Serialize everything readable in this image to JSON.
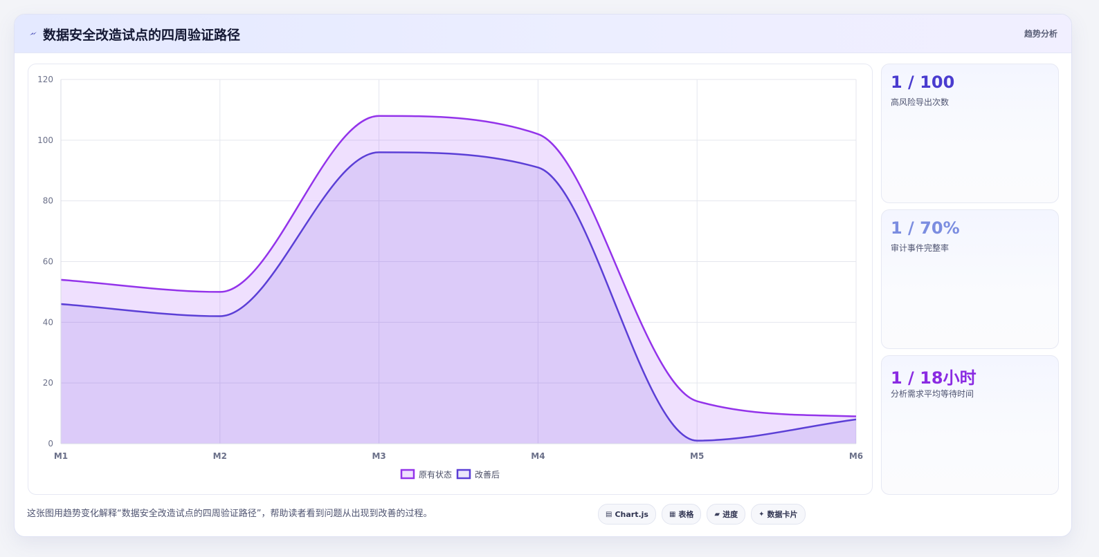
{
  "header": {
    "icon": "lightning-icon",
    "title": "数据安全改造试点的四周验证路径",
    "tag": "趋势分析"
  },
  "chart_data": {
    "type": "area",
    "categories": [
      "M1",
      "M2",
      "M3",
      "M4",
      "M5",
      "M6"
    ],
    "series": [
      {
        "name": "原有状态",
        "values": [
          54,
          50,
          108,
          102,
          14,
          9
        ],
        "color": "#9333ea"
      },
      {
        "name": "改善后",
        "values": [
          46,
          42,
          96,
          91,
          1,
          8
        ],
        "color": "#5b3fd6"
      }
    ],
    "ylim": [
      0,
      120
    ],
    "yticks": [
      0,
      20,
      40,
      60,
      80,
      100,
      120
    ],
    "grid": true,
    "legend_position": "bottom",
    "title": "",
    "xlabel": "",
    "ylabel": ""
  },
  "stats": [
    {
      "value": "1 / 100",
      "label": "高风险导出次数",
      "color": "#4a3ccf"
    },
    {
      "value": "1 / 70%",
      "label": "审计事件完整率",
      "color": "#7b8de0"
    },
    {
      "value": "1 / 18小时",
      "label": "分析需求平均等待时间",
      "color": "#8a2be2"
    }
  ],
  "footer": {
    "text": "这张图用趋势变化解释“数据安全改造试点的四周验证路径”，帮助读者看到问题从出现到改善的过程。",
    "chips": [
      {
        "icon": "chart-icon",
        "glyph": "▤",
        "label": "Chart.js"
      },
      {
        "icon": "table-icon",
        "glyph": "▦",
        "label": "表格"
      },
      {
        "icon": "progress-icon",
        "glyph": "▰",
        "label": "进度"
      },
      {
        "icon": "sparkle-icon",
        "glyph": "✦",
        "label": "数据卡片"
      }
    ]
  }
}
